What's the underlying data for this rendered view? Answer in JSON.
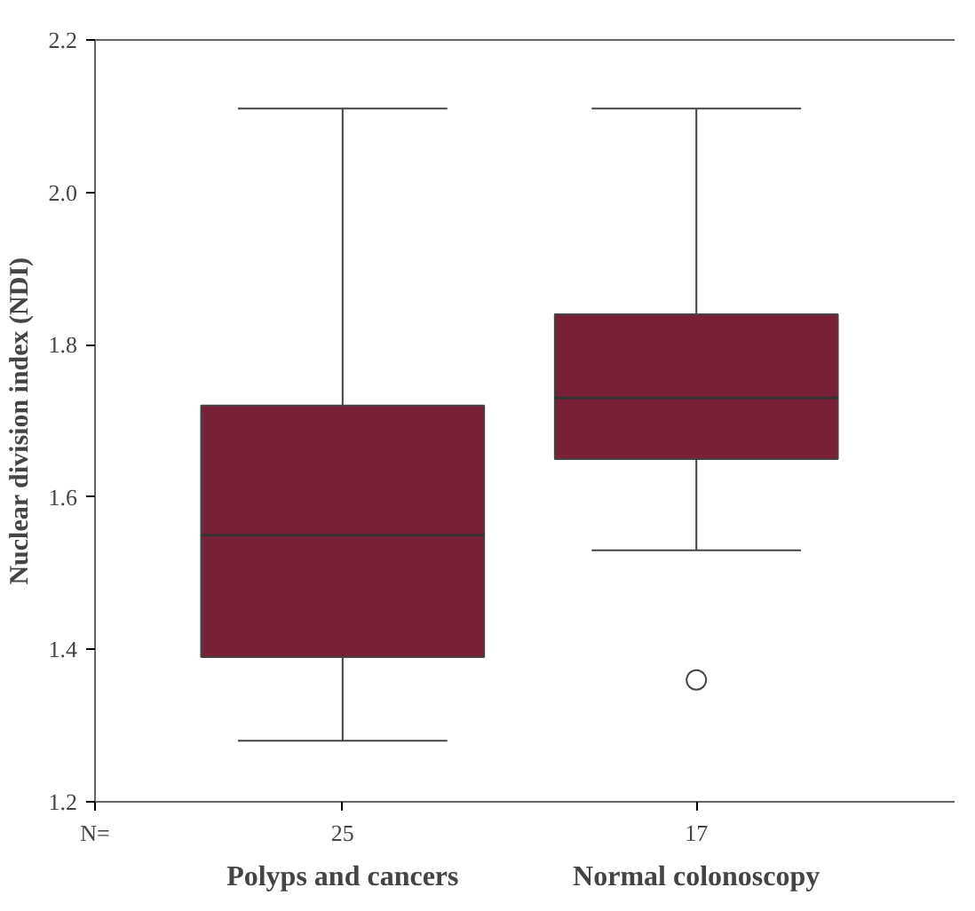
{
  "chart_data": {
    "type": "box",
    "ylabel": "Nuclear division index (NDI)",
    "categories": [
      "Polyps and cancers",
      "Normal colonoscopy"
    ],
    "color": "#7a2036",
    "boxes": [
      {
        "low": 1.28,
        "q1": 1.39,
        "median": 1.55,
        "q3": 1.72,
        "high": 2.11
      },
      {
        "low": 1.53,
        "q1": 1.65,
        "median": 1.73,
        "q3": 1.84,
        "high": 2.11,
        "outliers": [
          1.36
        ]
      }
    ],
    "ylim": [
      1.2,
      2.2
    ],
    "yticks": [
      {
        "value": 1.2,
        "label": "1.2"
      },
      {
        "value": 1.4,
        "label": "1.4"
      },
      {
        "value": 1.6,
        "label": "1.6"
      },
      {
        "value": 1.8,
        "label": "1.8"
      },
      {
        "value": 2,
        "label": "2.0"
      },
      {
        "value": 2.2,
        "label": "2.2"
      }
    ],
    "grid": false,
    "annotations": [
      "N=",
      "25",
      "17"
    ]
  }
}
